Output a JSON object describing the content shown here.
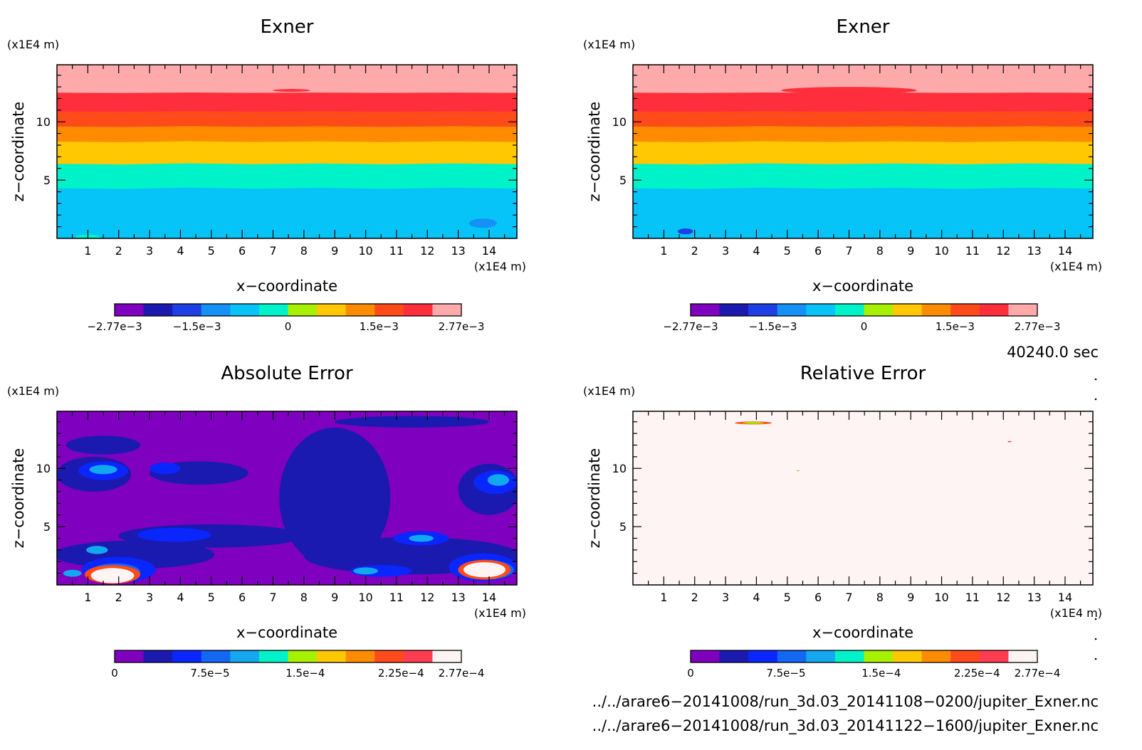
{
  "palettes": {
    "exner": [
      "#7f00bf",
      "#1a1ab0",
      "#1f3fe6",
      "#1591f5",
      "#06c4f7",
      "#00f2c8",
      "#a6f000",
      "#ffc800",
      "#ff8c00",
      "#ff4a1a",
      "#ff2e3c",
      "#ffaaaa"
    ],
    "error": [
      "#7f00bf",
      "#1a1ab0",
      "#0a26ff",
      "#1466f5",
      "#12a8f0",
      "#00f2c8",
      "#a6f000",
      "#ffc800",
      "#ff8c00",
      "#ff4a1a",
      "#ff3c50",
      "#fff4f4"
    ]
  },
  "chart_data": [
    {
      "type": "heatmap",
      "title": "Exner",
      "xlabel": "x−coordinate",
      "ylabel": "z−coordinate",
      "x_unit": "(x1E4 m)",
      "y_unit": "(x1E4 m)",
      "xlim": [
        0,
        14.9
      ],
      "ylim": [
        0,
        14.9
      ],
      "x_ticks": [
        "1",
        "2",
        "3",
        "4",
        "5",
        "6",
        "7",
        "8",
        "9",
        "10",
        "11",
        "12",
        "13",
        "14"
      ],
      "y_ticks": [
        "5",
        "10"
      ],
      "colorbar_labels": [
        "−2.77e−3",
        "−1.5e−3",
        "0",
        "1.5e−3",
        "2.77e−3"
      ],
      "bands": [
        {
          "z_top": 14.9,
          "level": 11
        },
        {
          "z_top": 12.5,
          "level": 10
        },
        {
          "z_top": 10.9,
          "level": 9
        },
        {
          "z_top": 9.6,
          "level": 8
        },
        {
          "z_top": 8.3,
          "level": 7
        },
        {
          "z_top": 6.4,
          "level": 5
        },
        {
          "z_top": 4.3,
          "level": 4
        }
      ],
      "blobs": [
        {
          "x": 13.8,
          "z": 1.3,
          "rx": 0.45,
          "rz": 0.4,
          "level": 3
        },
        {
          "x": 1.0,
          "z": 0.1,
          "rx": 0.4,
          "rz": 0.25,
          "level": 5
        },
        {
          "x": 7.6,
          "z": 12.7,
          "rx": 0.6,
          "rz": 0.12,
          "level": 10
        }
      ]
    },
    {
      "type": "heatmap",
      "title": "Exner",
      "xlabel": "x−coordinate",
      "ylabel": "z−coordinate",
      "x_unit": "(x1E4 m)",
      "y_unit": "(x1E4 m)",
      "xlim": [
        0,
        14.9
      ],
      "ylim": [
        0,
        14.9
      ],
      "x_ticks": [
        "1",
        "2",
        "3",
        "4",
        "5",
        "6",
        "7",
        "8",
        "9",
        "10",
        "11",
        "12",
        "13",
        "14"
      ],
      "y_ticks": [
        "5",
        "10"
      ],
      "colorbar_labels": [
        "−2.77e−3",
        "−1.5e−3",
        "0",
        "1.5e−3",
        "2.77e−3"
      ],
      "bands": [
        {
          "z_top": 14.9,
          "level": 11
        },
        {
          "z_top": 12.5,
          "level": 10
        },
        {
          "z_top": 10.9,
          "level": 9
        },
        {
          "z_top": 9.6,
          "level": 8
        },
        {
          "z_top": 8.3,
          "level": 7
        },
        {
          "z_top": 6.4,
          "level": 5
        },
        {
          "z_top": 4.3,
          "level": 4
        }
      ],
      "blobs": [
        {
          "x": 1.7,
          "z": 0.6,
          "rx": 0.25,
          "rz": 0.25,
          "level": 2
        },
        {
          "x": 7.0,
          "z": 12.7,
          "rx": 2.2,
          "rz": 0.3,
          "level": 10
        }
      ]
    },
    {
      "type": "heatmap",
      "title": "Absolute Error",
      "xlabel": "x−coordinate",
      "ylabel": "z−coordinate",
      "x_unit": "(x1E4 m)",
      "y_unit": "(x1E4 m)",
      "xlim": [
        0,
        14.9
      ],
      "ylim": [
        0,
        14.9
      ],
      "x_ticks": [
        "1",
        "2",
        "3",
        "4",
        "5",
        "6",
        "7",
        "8",
        "9",
        "10",
        "11",
        "12",
        "13",
        "14"
      ],
      "y_ticks": [
        "5",
        "10"
      ],
      "colorbar_labels": [
        "0",
        "7.5e−5",
        "1.5e−4",
        "2.25e−4",
        "2.77e−4"
      ],
      "background_level": 0,
      "blobs": [
        {
          "x": 11.5,
          "z": 2.5,
          "rx": 3.5,
          "rz": 1.6,
          "level": 1
        },
        {
          "x": 9.0,
          "z": 7.5,
          "rx": 1.8,
          "rz": 6.0,
          "level": 1
        },
        {
          "x": 11.5,
          "z": 14.0,
          "rx": 2.5,
          "rz": 0.5,
          "level": 1
        },
        {
          "x": 5.0,
          "z": 4.2,
          "rx": 3.0,
          "rz": 1.0,
          "level": 1
        },
        {
          "x": 2.5,
          "z": 2.6,
          "rx": 2.6,
          "rz": 1.2,
          "level": 1
        },
        {
          "x": 1.2,
          "z": 9.5,
          "rx": 1.2,
          "rz": 1.5,
          "level": 1
        },
        {
          "x": 4.6,
          "z": 9.6,
          "rx": 1.6,
          "rz": 1.0,
          "level": 1
        },
        {
          "x": 14.0,
          "z": 8.2,
          "rx": 1.0,
          "rz": 2.2,
          "level": 1
        },
        {
          "x": 1.5,
          "z": 12.0,
          "rx": 1.2,
          "rz": 0.8,
          "level": 1
        },
        {
          "x": 2.0,
          "z": 1.3,
          "rx": 1.2,
          "rz": 1.1,
          "level": 2
        },
        {
          "x": 13.8,
          "z": 1.5,
          "rx": 1.1,
          "rz": 1.2,
          "level": 2
        },
        {
          "x": 3.8,
          "z": 4.3,
          "rx": 1.2,
          "rz": 0.6,
          "level": 2
        },
        {
          "x": 10.5,
          "z": 1.2,
          "rx": 1.0,
          "rz": 0.5,
          "level": 2
        },
        {
          "x": 1.5,
          "z": 9.8,
          "rx": 0.8,
          "rz": 0.8,
          "level": 2
        },
        {
          "x": 14.2,
          "z": 8.8,
          "rx": 0.7,
          "rz": 1.0,
          "level": 2
        },
        {
          "x": 11.8,
          "z": 4.0,
          "rx": 0.9,
          "rz": 0.6,
          "level": 2
        },
        {
          "x": 3.5,
          "z": 10.0,
          "rx": 0.5,
          "rz": 0.5,
          "level": 2
        },
        {
          "x": 1.9,
          "z": 1.1,
          "rx": 0.8,
          "rz": 0.75,
          "level": 3
        },
        {
          "x": 13.9,
          "z": 1.3,
          "rx": 0.9,
          "rz": 0.85,
          "level": 3
        },
        {
          "x": 1.5,
          "z": 9.9,
          "rx": 0.45,
          "rz": 0.4,
          "level": 4
        },
        {
          "x": 1.3,
          "z": 3.0,
          "rx": 0.35,
          "rz": 0.35,
          "level": 4
        },
        {
          "x": 0.5,
          "z": 1.0,
          "rx": 0.3,
          "rz": 0.3,
          "level": 4
        },
        {
          "x": 11.8,
          "z": 4.0,
          "rx": 0.4,
          "rz": 0.3,
          "level": 4
        },
        {
          "x": 14.3,
          "z": 9.0,
          "rx": 0.35,
          "rz": 0.5,
          "level": 4
        },
        {
          "x": 10.0,
          "z": 1.2,
          "rx": 0.4,
          "rz": 0.3,
          "level": 4
        },
        {
          "x": 1.8,
          "z": 0.9,
          "rx": 0.9,
          "rz": 0.8,
          "level": 9
        },
        {
          "x": 13.85,
          "z": 1.3,
          "rx": 0.85,
          "rz": 0.85,
          "level": 9
        },
        {
          "x": 1.8,
          "z": 0.8,
          "rx": 0.7,
          "rz": 0.65,
          "level": 11
        },
        {
          "x": 13.85,
          "z": 1.3,
          "rx": 0.68,
          "rz": 0.65,
          "level": 11
        }
      ]
    },
    {
      "type": "heatmap",
      "title": "Relative Error",
      "xlabel": "x−coordinate",
      "ylabel": "z−coordinate",
      "x_unit": "(x1E4 m)",
      "y_unit": "(x1E4 m)",
      "xlim": [
        0,
        14.9
      ],
      "ylim": [
        0,
        14.9
      ],
      "x_ticks": [
        "1",
        "2",
        "3",
        "4",
        "5",
        "6",
        "7",
        "8",
        "9",
        "10",
        "11",
        "12",
        "13",
        "14"
      ],
      "y_ticks": [
        "5",
        "10"
      ],
      "colorbar_labels": [
        "0",
        "7.5e−5",
        "1.5e−4",
        "2.25e−4",
        "2.77e−4"
      ],
      "background_level": 11,
      "blobs": [
        {
          "x": 3.9,
          "z": 13.9,
          "rx": 0.6,
          "rz": 0.12,
          "level": 9
        },
        {
          "x": 3.9,
          "z": 13.9,
          "rx": 0.35,
          "rz": 0.08,
          "level": 6
        },
        {
          "x": 12.2,
          "z": 12.3,
          "rx": 0.06,
          "rz": 0.05,
          "level": 10
        },
        {
          "x": 5.35,
          "z": 9.8,
          "rx": 0.04,
          "rz": 0.04,
          "level": 8
        }
      ]
    }
  ],
  "time_label": "40240.0 sec",
  "file_lines": [
    "../../arare6−20141008/run_3d.03_20141108−0200/jupiter_Exner.nc",
    "../../arare6−20141008/run_3d.03_20141122−1600/jupiter_Exner.nc"
  ]
}
